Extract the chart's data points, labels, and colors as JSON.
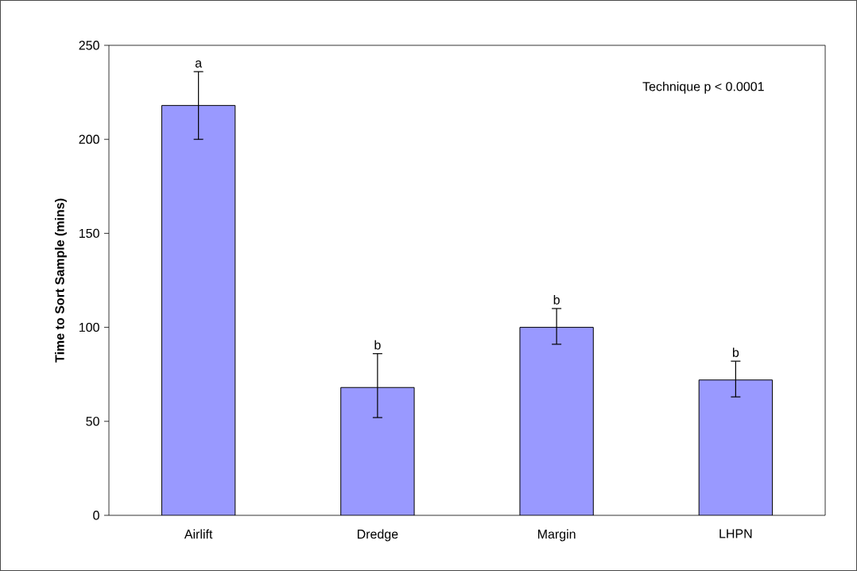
{
  "chart_data": {
    "type": "bar",
    "ylabel": "**Time to Sort Sample (mins)**",
    "categories": [
      "Airlift",
      "Dredge",
      "Margin",
      "LHPN"
    ],
    "values": [
      218,
      68,
      100,
      72
    ],
    "color": "#9999ff",
    "errors": [
      [
        200,
        236
      ],
      [
        52,
        86
      ],
      [
        91,
        110
      ],
      [
        63,
        82
      ]
    ],
    "ylim": [
      0,
      250
    ],
    "yticks": [
      0,
      50,
      100,
      150,
      200,
      250
    ],
    "annotations": [
      {
        "text": "a",
        "x": "Airlift",
        "y": 236
      },
      {
        "text": "b",
        "x": "Dredge",
        "y": 86
      },
      {
        "text": "b",
        "x": "Margin",
        "y": 110
      },
      {
        "text": "b",
        "x": "LHPN",
        "y": 82
      },
      "Technique   p < 0.0001"
    ]
  }
}
